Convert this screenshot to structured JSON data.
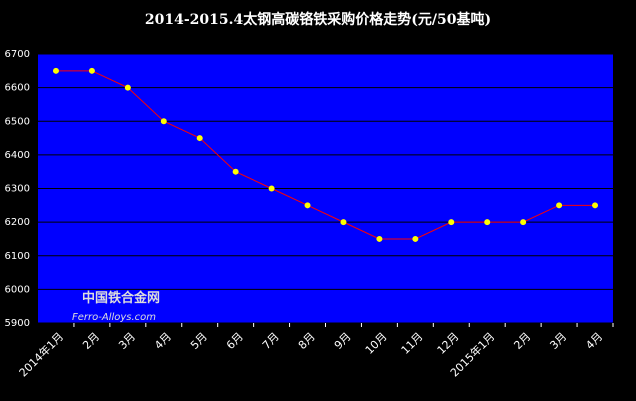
{
  "chart_data": {
    "type": "line",
    "title": "2014-2015.4太钢高碳铬铁采购价格走势(元/50基吨)",
    "categories": [
      "2014年1月",
      "2月",
      "3月",
      "4月",
      "5月",
      "6月",
      "7月",
      "8月",
      "9月",
      "10月",
      "11月",
      "12月",
      "2015年1月",
      "2月",
      "3月",
      "4月"
    ],
    "series": [
      {
        "color": "#ff0000",
        "values": [
          6650,
          6650,
          6600,
          6500,
          6450,
          6350,
          6300,
          6250,
          6200,
          6150,
          6150,
          6200,
          6200,
          6200,
          6250,
          6250
        ]
      }
    ],
    "marker_color": "#ffff00",
    "ylim": [
      5900,
      6700
    ],
    "yticks": [
      5900,
      6000,
      6100,
      6200,
      6300,
      6400,
      6500,
      6600,
      6700
    ],
    "grid": true,
    "watermark": {
      "name": "中国铁合金网",
      "url": "Ferro-Alloys.com"
    }
  }
}
